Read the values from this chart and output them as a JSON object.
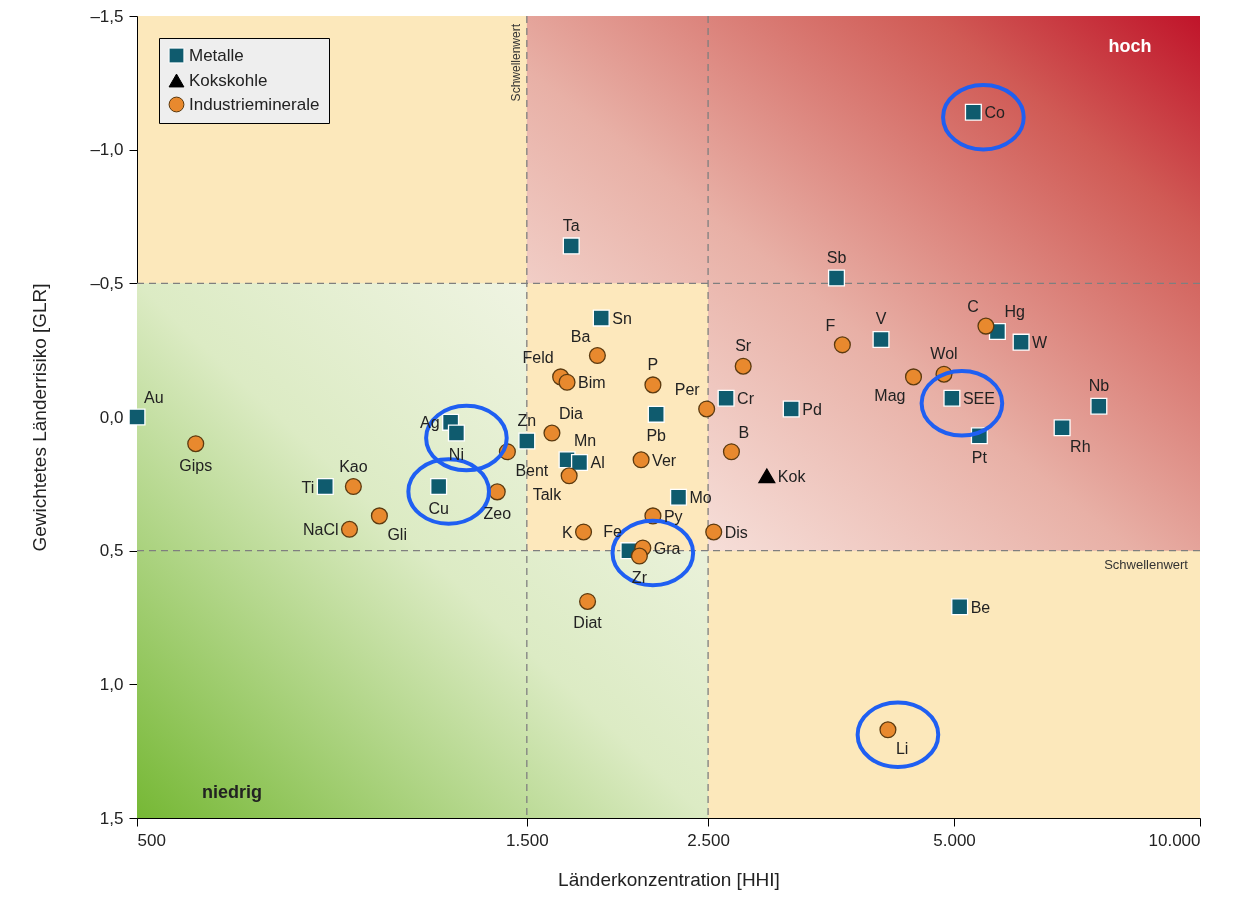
{
  "chart_data": {
    "type": "scatter",
    "xlabel": "Länderkonzentration [HHI]",
    "ylabel": "Gewichtetes Länderrisiko [GLR]",
    "log": "x",
    "legend": "top left",
    "xlim": [
      500,
      10000
    ],
    "ylim": [
      1.5,
      -1.5
    ],
    "xticks": [
      500,
      {
        "value": 1500,
        "label": "1.500"
      },
      {
        "value": 2500,
        "label": "2.500"
      },
      {
        "value": 5000,
        "label": "5.000"
      },
      {
        "value": 10000,
        "label": "10.000"
      }
    ],
    "yticks": [
      {
        "value": -1.5,
        "label": "–1,5"
      },
      {
        "value": -1.0,
        "label": "–1,0"
      },
      {
        "value": -0.5,
        "label": "–0,5"
      },
      {
        "value": 0,
        "label": "0,0"
      },
      {
        "value": 0.5,
        "label": "0,5"
      },
      {
        "value": 1.0,
        "label": "1,0"
      },
      {
        "value": 1.5,
        "label": "1,5"
      }
    ],
    "series": [
      {
        "name": "Metalle",
        "color": "#0f5b6e",
        "marker": "square",
        "x": [
          500,
          850,
          1210,
          1230,
          1170,
          1500,
          1850,
          1700,
          1680,
          1740,
          2160,
          2300,
          2000,
          2630,
          3160,
          3590,
          4070,
          5280,
          4970,
          5370,
          5650,
          6040,
          6780,
          7520,
          5080
        ],
        "values": [
          0.0,
          0.26,
          0.02,
          0.06,
          0.26,
          0.09,
          -0.37,
          -0.64,
          0.16,
          0.17,
          -0.01,
          0.3,
          0.5,
          -0.07,
          -0.03,
          -0.52,
          -0.29,
          -1.14,
          -0.07,
          0.07,
          -0.32,
          -0.28,
          0.04,
          -0.04,
          0.71
        ]
      },
      {
        "name": "Kokskohle",
        "color": "#000000",
        "marker": "triangle",
        "x": [
          2950
        ],
        "values": [
          0.22
        ]
      },
      {
        "name": "Industrieminerale",
        "color": "#e8892e",
        "marker": "circle",
        "x": [
          590,
          920,
          910,
          990,
          1380,
          1420,
          1610,
          1650,
          1680,
          1830,
          1690,
          1760,
          1780,
          2140,
          2070,
          2140,
          2080,
          2060,
          2490,
          2760,
          2670,
          2540,
          3650,
          4460,
          4860,
          5470,
          4150
        ],
        "values": [
          0.1,
          0.26,
          0.42,
          0.37,
          0.28,
          0.13,
          0.06,
          -0.15,
          -0.13,
          -0.23,
          0.22,
          0.43,
          0.69,
          -0.12,
          0.16,
          0.37,
          0.49,
          0.52,
          -0.03,
          -0.19,
          0.13,
          0.43,
          -0.27,
          -0.15,
          -0.16,
          -0.34,
          1.17
        ]
      }
    ],
    "ref_lines": [
      {
        "axis": "x",
        "value": 1500,
        "label": "Schwellenwert",
        "color": "#7f7f7f",
        "line_style": "dashed"
      },
      {
        "axis": "x",
        "value": 2500,
        "color": "#7f7f7f",
        "line_style": "dashed"
      },
      {
        "axis": "y",
        "value": -0.5,
        "color": "#7f7f7f",
        "line_style": "dashed"
      },
      {
        "axis": "y",
        "value": 0.5,
        "label": "Schwellenwert",
        "color": "#7f7f7f",
        "line_style": "dashed"
      }
    ],
    "annotations": [
      {
        "text": "Au",
        "x": 500,
        "y": 0.0
      },
      {
        "text": "Ti",
        "x": 850,
        "y": 0.26
      },
      {
        "text": "Ag",
        "x": 1210,
        "y": 0.02
      },
      {
        "text": "Ni",
        "x": 1230,
        "y": 0.06
      },
      {
        "text": "Cu",
        "x": 1170,
        "y": 0.26
      },
      {
        "text": "Zn",
        "x": 1500,
        "y": 0.09
      },
      {
        "text": "Sn",
        "x": 1850,
        "y": -0.37
      },
      {
        "text": "Ta",
        "x": 1700,
        "y": -0.64
      },
      {
        "text": "Mn",
        "x": 1680,
        "y": 0.16
      },
      {
        "text": "Al",
        "x": 1740,
        "y": 0.17
      },
      {
        "text": "Pb",
        "x": 2160,
        "y": -0.01
      },
      {
        "text": "Mo",
        "x": 2300,
        "y": 0.3
      },
      {
        "text": "Fe",
        "x": 2000,
        "y": 0.5
      },
      {
        "text": "Cr",
        "x": 2630,
        "y": -0.07
      },
      {
        "text": "Pd",
        "x": 3160,
        "y": -0.03
      },
      {
        "text": "Sb",
        "x": 3590,
        "y": -0.52
      },
      {
        "text": "V",
        "x": 4070,
        "y": -0.29
      },
      {
        "text": "Co",
        "x": 5280,
        "y": -1.14
      },
      {
        "text": "SEE",
        "x": 4970,
        "y": -0.07
      },
      {
        "text": "Pt",
        "x": 5370,
        "y": 0.07
      },
      {
        "text": "Hg",
        "x": 5650,
        "y": -0.32
      },
      {
        "text": "W",
        "x": 6040,
        "y": -0.28
      },
      {
        "text": "Rh",
        "x": 6780,
        "y": 0.04
      },
      {
        "text": "Nb",
        "x": 7520,
        "y": -0.04
      },
      {
        "text": "Be",
        "x": 5080,
        "y": 0.71
      },
      {
        "text": "Kok",
        "x": 2950,
        "y": 0.22
      },
      {
        "text": "Gips",
        "x": 590,
        "y": 0.1
      },
      {
        "text": "Kao",
        "x": 920,
        "y": 0.26
      },
      {
        "text": "NaCl",
        "x": 910,
        "y": 0.42
      },
      {
        "text": "Gli",
        "x": 990,
        "y": 0.37
      },
      {
        "text": "Zeo",
        "x": 1380,
        "y": 0.28
      },
      {
        "text": "Bent",
        "x": 1420,
        "y": 0.13
      },
      {
        "text": "Dia",
        "x": 1610,
        "y": 0.06
      },
      {
        "text": "Feld",
        "x": 1650,
        "y": -0.15
      },
      {
        "text": "Bim",
        "x": 1680,
        "y": -0.13
      },
      {
        "text": "Ba",
        "x": 1830,
        "y": -0.23
      },
      {
        "text": "Talk",
        "x": 1690,
        "y": 0.22
      },
      {
        "text": "K",
        "x": 1760,
        "y": 0.43
      },
      {
        "text": "Diat",
        "x": 1780,
        "y": 0.69
      },
      {
        "text": "P",
        "x": 2140,
        "y": -0.12
      },
      {
        "text": "Ver",
        "x": 2070,
        "y": 0.16
      },
      {
        "text": "Py",
        "x": 2140,
        "y": 0.37
      },
      {
        "text": "Gra",
        "x": 2080,
        "y": 0.49
      },
      {
        "text": "Zr",
        "x": 2060,
        "y": 0.52
      },
      {
        "text": "Per",
        "x": 2490,
        "y": -0.03
      },
      {
        "text": "Sr",
        "x": 2760,
        "y": -0.19
      },
      {
        "text": "B",
        "x": 2670,
        "y": 0.13
      },
      {
        "text": "Dis",
        "x": 2540,
        "y": 0.43
      },
      {
        "text": "F",
        "x": 3650,
        "y": -0.27
      },
      {
        "text": "Mag",
        "x": 4460,
        "y": -0.15
      },
      {
        "text": "Wol",
        "x": 4860,
        "y": -0.16
      },
      {
        "text": "C",
        "x": 5470,
        "y": -0.34
      },
      {
        "text": "Li",
        "x": 4150,
        "y": 1.17
      },
      "hoch",
      "niedrig"
    ]
  }
}
